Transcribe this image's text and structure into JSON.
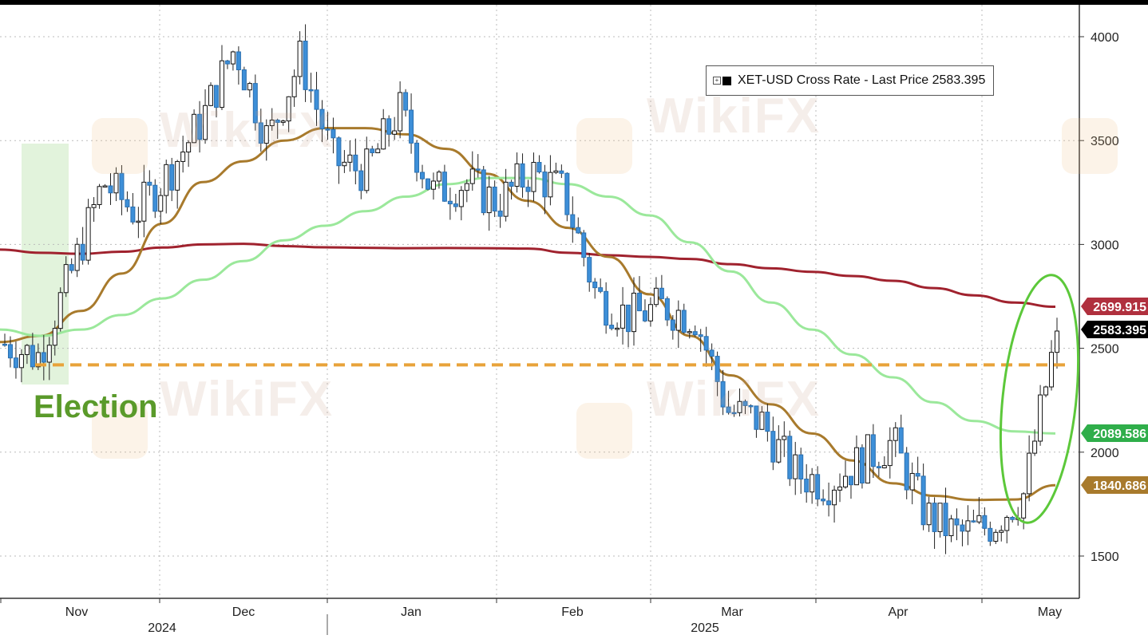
{
  "chart_data": {
    "type": "candlestick",
    "legend": {
      "text": "XET-USD Cross Rate - Last Price 2583.395",
      "placement": "top-right"
    },
    "annotation": {
      "text": "Election"
    },
    "yaxis": {
      "ticks": [
        1500,
        2000,
        2500,
        3000,
        3500,
        4000
      ],
      "ylim": [
        1300,
        4150
      ],
      "position": "right"
    },
    "xaxis": {
      "month_labels": [
        "Nov",
        "Dec",
        "Jan",
        "Feb",
        "Mar",
        "Apr",
        "May"
      ],
      "year_labels": [
        "2024",
        "2025"
      ]
    },
    "grid": true,
    "reference_line": {
      "value": 2420,
      "style": "dashed",
      "color": "#e8a33a"
    },
    "price_tags": [
      {
        "value": "2699.915",
        "color": "#b0303e"
      },
      {
        "value": "2583.395",
        "color": "#000000"
      },
      {
        "value": "2089.586",
        "color": "#2fae4a"
      },
      {
        "value": "1840.686",
        "color": "#a87a2c"
      }
    ],
    "series": [
      {
        "kind": "moving_average",
        "color": "#a0222e",
        "values": [
          2975,
          2960,
          2955,
          2965,
          2985,
          3000,
          3003,
          2992,
          2986,
          2984,
          2982,
          2983,
          2982,
          2980,
          2960,
          2948,
          2940,
          2930,
          2905,
          2885,
          2868,
          2848,
          2825,
          2790,
          2755,
          2720,
          2700
        ]
      },
      {
        "kind": "moving_average",
        "color": "#a87a2c",
        "values": [
          2530,
          2560,
          2680,
          2860,
          3100,
          3300,
          3400,
          3500,
          3560,
          3560,
          3530,
          3460,
          3340,
          3210,
          3080,
          2940,
          2760,
          2560,
          2370,
          2230,
          2090,
          1960,
          1850,
          1790,
          1770,
          1772,
          1841
        ]
      },
      {
        "kind": "moving_average",
        "color": "#9be89b",
        "values": [
          2590,
          2560,
          2590,
          2660,
          2740,
          2830,
          2920,
          3020,
          3090,
          3160,
          3230,
          3290,
          3320,
          3320,
          3290,
          3230,
          3140,
          3010,
          2870,
          2720,
          2590,
          2470,
          2360,
          2240,
          2150,
          2100,
          2090
        ]
      },
      {
        "kind": "candles",
        "x_dates": [
          "2024-10-24",
          "2024-10-29",
          "2024-11-04",
          "2024-11-10",
          "2024-11-16",
          "2024-11-22",
          "2024-11-28",
          "2024-12-04",
          "2024-12-10",
          "2024-12-16",
          "2024-12-22",
          "2024-12-28",
          "2025-01-03",
          "2025-01-09",
          "2025-01-15",
          "2025-01-21",
          "2025-01-27",
          "2025-02-02",
          "2025-02-08",
          "2025-02-14",
          "2025-02-20",
          "2025-02-26",
          "2025-03-04",
          "2025-03-10",
          "2025-03-16",
          "2025-03-22",
          "2025-03-28",
          "2025-04-03",
          "2025-04-09",
          "2025-04-15",
          "2025-04-21",
          "2025-04-27",
          "2025-05-01"
        ],
        "close": [
          2520,
          2460,
          2850,
          3300,
          3150,
          3350,
          3600,
          3950,
          3500,
          3900,
          3400,
          3350,
          3650,
          3250,
          3300,
          3200,
          3350,
          3250,
          2750,
          2650,
          2700,
          2650,
          2200,
          2150,
          1900,
          1850,
          1950,
          2050,
          1700,
          1600,
          1650,
          1800,
          2583
        ]
      }
    ]
  }
}
